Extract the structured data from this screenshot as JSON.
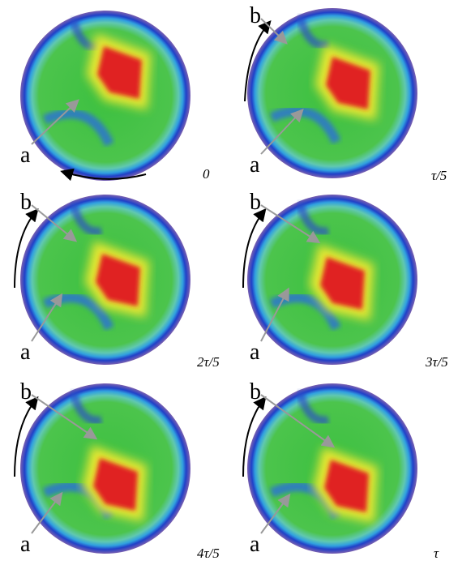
{
  "panels": [
    {
      "time": "0",
      "labels": [
        "a"
      ]
    },
    {
      "time": "τ/5",
      "labels": [
        "a",
        "b"
      ]
    },
    {
      "time": "2τ/5",
      "labels": [
        "a",
        "b"
      ]
    },
    {
      "time": "3τ/5",
      "labels": [
        "a",
        "b"
      ]
    },
    {
      "time": "4τ/5",
      "labels": [
        "a",
        "b"
      ]
    },
    {
      "time": "τ",
      "labels": [
        "a",
        "b"
      ]
    }
  ]
}
